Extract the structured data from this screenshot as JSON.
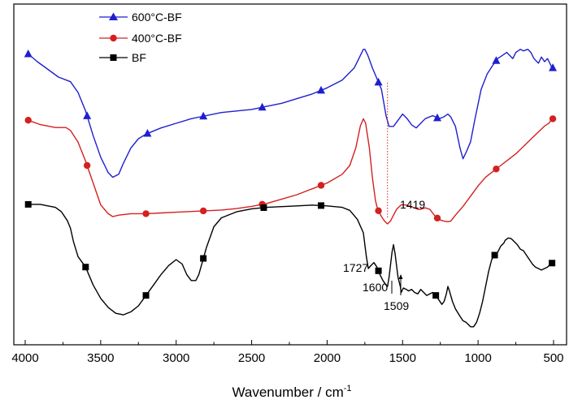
{
  "chart_data": {
    "type": "line",
    "xlabel": "Wavenumber / cm",
    "xlabel_superscript": "-1",
    "ylabel": "",
    "xlim": [
      4000,
      500
    ],
    "x_reversed": true,
    "x_ticks": [
      4000,
      3500,
      3000,
      2500,
      2000,
      1500,
      1000,
      500
    ],
    "y_ticks_labeled": false,
    "grid": false,
    "legend_position": "top-left",
    "series": [
      {
        "name": "600°C-BF",
        "color": "#1f1fd0",
        "marker": "triangle",
        "points": [
          [
            3980,
            85
          ],
          [
            3920,
            80
          ],
          [
            3850,
            75
          ],
          [
            3780,
            70
          ],
          [
            3700,
            67
          ],
          [
            3650,
            60
          ],
          [
            3600,
            48
          ],
          [
            3550,
            32
          ],
          [
            3500,
            18
          ],
          [
            3450,
            8
          ],
          [
            3420,
            5
          ],
          [
            3380,
            7
          ],
          [
            3350,
            14
          ],
          [
            3300,
            24
          ],
          [
            3250,
            30
          ],
          [
            3200,
            33
          ],
          [
            3100,
            37
          ],
          [
            3000,
            40
          ],
          [
            2900,
            43
          ],
          [
            2800,
            45
          ],
          [
            2700,
            47
          ],
          [
            2600,
            48
          ],
          [
            2500,
            49
          ],
          [
            2400,
            51
          ],
          [
            2300,
            53
          ],
          [
            2200,
            56
          ],
          [
            2100,
            59
          ],
          [
            2000,
            63
          ],
          [
            1900,
            68
          ],
          [
            1820,
            76
          ],
          [
            1780,
            84
          ],
          [
            1760,
            88
          ],
          [
            1750,
            88
          ],
          [
            1730,
            84
          ],
          [
            1700,
            76
          ],
          [
            1670,
            69
          ],
          [
            1640,
            62
          ],
          [
            1610,
            45
          ],
          [
            1590,
            38
          ],
          [
            1560,
            38
          ],
          [
            1530,
            42
          ],
          [
            1500,
            46
          ],
          [
            1470,
            43
          ],
          [
            1440,
            39
          ],
          [
            1410,
            37
          ],
          [
            1380,
            40
          ],
          [
            1350,
            43
          ],
          [
            1300,
            45
          ],
          [
            1260,
            43
          ],
          [
            1230,
            44
          ],
          [
            1200,
            46
          ],
          [
            1180,
            44
          ],
          [
            1150,
            38
          ],
          [
            1120,
            24
          ],
          [
            1100,
            17
          ],
          [
            1080,
            21
          ],
          [
            1050,
            28
          ],
          [
            1020,
            43
          ],
          [
            980,
            62
          ],
          [
            940,
            72
          ],
          [
            900,
            78
          ],
          [
            870,
            82
          ],
          [
            840,
            84
          ],
          [
            810,
            86
          ],
          [
            790,
            84
          ],
          [
            770,
            82
          ],
          [
            750,
            86
          ],
          [
            720,
            88
          ],
          [
            700,
            87
          ],
          [
            670,
            88
          ],
          [
            650,
            86
          ],
          [
            630,
            82
          ],
          [
            600,
            79
          ],
          [
            580,
            83
          ],
          [
            560,
            80
          ],
          [
            540,
            82
          ],
          [
            510,
            76
          ]
        ]
      },
      {
        "name": "400°C-BF",
        "color": "#d42020",
        "marker": "circle",
        "points": [
          [
            3980,
            71
          ],
          [
            3900,
            68
          ],
          [
            3800,
            66
          ],
          [
            3730,
            66
          ],
          [
            3700,
            64
          ],
          [
            3650,
            56
          ],
          [
            3600,
            43
          ],
          [
            3550,
            28
          ],
          [
            3500,
            13
          ],
          [
            3450,
            7
          ],
          [
            3420,
            5
          ],
          [
            3380,
            6
          ],
          [
            3300,
            7
          ],
          [
            3200,
            7
          ],
          [
            3100,
            7.5
          ],
          [
            3000,
            8
          ],
          [
            2900,
            8.5
          ],
          [
            2800,
            9
          ],
          [
            2700,
            9.5
          ],
          [
            2600,
            10.5
          ],
          [
            2500,
            12
          ],
          [
            2400,
            14
          ],
          [
            2300,
            17
          ],
          [
            2200,
            20
          ],
          [
            2100,
            24
          ],
          [
            2000,
            28
          ],
          [
            1900,
            34
          ],
          [
            1850,
            40
          ],
          [
            1810,
            52
          ],
          [
            1780,
            67
          ],
          [
            1760,
            72
          ],
          [
            1745,
            69
          ],
          [
            1720,
            52
          ],
          [
            1700,
            32
          ],
          [
            1680,
            16
          ],
          [
            1665,
            10
          ],
          [
            1640,
            5
          ],
          [
            1620,
            2
          ],
          [
            1600,
            0
          ],
          [
            1580,
            2
          ],
          [
            1560,
            6
          ],
          [
            1540,
            10
          ],
          [
            1510,
            13
          ],
          [
            1480,
            13
          ],
          [
            1450,
            12
          ],
          [
            1420,
            11
          ],
          [
            1400,
            10
          ],
          [
            1380,
            10
          ],
          [
            1350,
            11
          ],
          [
            1320,
            10
          ],
          [
            1290,
            6
          ],
          [
            1260,
            3
          ],
          [
            1230,
            2
          ],
          [
            1200,
            1.5
          ],
          [
            1180,
            2
          ],
          [
            1150,
            6
          ],
          [
            1100,
            12
          ],
          [
            1050,
            19
          ],
          [
            1000,
            26
          ],
          [
            950,
            32
          ],
          [
            900,
            36
          ],
          [
            850,
            40
          ],
          [
            800,
            44
          ],
          [
            750,
            48
          ],
          [
            700,
            53
          ],
          [
            650,
            58
          ],
          [
            600,
            63
          ],
          [
            560,
            67
          ],
          [
            530,
            69
          ],
          [
            510,
            72
          ]
        ]
      },
      {
        "name": "BF",
        "color": "#000000",
        "marker": "square",
        "points": [
          [
            3980,
            87
          ],
          [
            3900,
            87
          ],
          [
            3850,
            86
          ],
          [
            3800,
            85
          ],
          [
            3760,
            82
          ],
          [
            3720,
            76
          ],
          [
            3700,
            71
          ],
          [
            3680,
            62
          ],
          [
            3650,
            52
          ],
          [
            3600,
            45
          ],
          [
            3550,
            33
          ],
          [
            3500,
            24
          ],
          [
            3450,
            18
          ],
          [
            3400,
            14
          ],
          [
            3350,
            13
          ],
          [
            3300,
            15
          ],
          [
            3250,
            19
          ],
          [
            3200,
            26
          ],
          [
            3150,
            33
          ],
          [
            3100,
            40
          ],
          [
            3050,
            46
          ],
          [
            3000,
            50
          ],
          [
            2960,
            47
          ],
          [
            2930,
            40
          ],
          [
            2900,
            36
          ],
          [
            2870,
            36
          ],
          [
            2850,
            40
          ],
          [
            2800,
            58
          ],
          [
            2750,
            72
          ],
          [
            2700,
            78
          ],
          [
            2600,
            82
          ],
          [
            2500,
            84
          ],
          [
            2400,
            85
          ],
          [
            2300,
            85.5
          ],
          [
            2200,
            86
          ],
          [
            2100,
            86.5
          ],
          [
            2000,
            86
          ],
          [
            1900,
            85
          ],
          [
            1850,
            83
          ],
          [
            1800,
            77
          ],
          [
            1760,
            68
          ],
          [
            1740,
            52
          ],
          [
            1727,
            44
          ],
          [
            1710,
            46
          ],
          [
            1690,
            48
          ],
          [
            1670,
            45
          ],
          [
            1650,
            40
          ],
          [
            1630,
            36
          ],
          [
            1610,
            33
          ],
          [
            1600,
            32
          ],
          [
            1590,
            38
          ],
          [
            1570,
            55
          ],
          [
            1560,
            60
          ],
          [
            1550,
            54
          ],
          [
            1530,
            38
          ],
          [
            1515,
            32
          ],
          [
            1509,
            28
          ],
          [
            1495,
            31
          ],
          [
            1475,
            30
          ],
          [
            1460,
            29
          ],
          [
            1440,
            30
          ],
          [
            1420,
            28
          ],
          [
            1400,
            27
          ],
          [
            1380,
            30
          ],
          [
            1360,
            28
          ],
          [
            1340,
            26
          ],
          [
            1320,
            27
          ],
          [
            1300,
            28
          ],
          [
            1280,
            26
          ],
          [
            1260,
            23
          ],
          [
            1240,
            20
          ],
          [
            1225,
            22
          ],
          [
            1210,
            27
          ],
          [
            1200,
            32
          ],
          [
            1190,
            29
          ],
          [
            1170,
            22
          ],
          [
            1150,
            17
          ],
          [
            1120,
            12
          ],
          [
            1100,
            9
          ],
          [
            1080,
            8
          ],
          [
            1050,
            5
          ],
          [
            1030,
            5
          ],
          [
            1010,
            8
          ],
          [
            990,
            14
          ],
          [
            970,
            22
          ],
          [
            950,
            32
          ],
          [
            930,
            42
          ],
          [
            910,
            50
          ],
          [
            890,
            53
          ],
          [
            870,
            55
          ],
          [
            850,
            59
          ],
          [
            830,
            61
          ],
          [
            820,
            63
          ],
          [
            800,
            64.5
          ],
          [
            780,
            64
          ],
          [
            760,
            62
          ],
          [
            740,
            60
          ],
          [
            720,
            57
          ],
          [
            700,
            56
          ],
          [
            680,
            53
          ],
          [
            660,
            50
          ],
          [
            640,
            47
          ],
          [
            620,
            45
          ],
          [
            600,
            44
          ],
          [
            580,
            43
          ],
          [
            560,
            44
          ],
          [
            540,
            45
          ],
          [
            520,
            47
          ],
          [
            505,
            48
          ]
        ],
        "marker_x": [
          3980,
          3600,
          3200,
          2820,
          2420,
          2040,
          1660,
          1280,
          890,
          510
        ]
      }
    ],
    "blue_marker_x": [
      3980,
      3590,
      3190,
      2820,
      2430,
      2040,
      1660,
      1270,
      880,
      505
    ],
    "red_marker_x": [
      3980,
      3590,
      3200,
      2820,
      2430,
      2040,
      1660,
      1270,
      880,
      505
    ],
    "reference_line": {
      "x": 1600,
      "color": "#d42020",
      "style": "dotted"
    },
    "annotations": [
      {
        "text": "1727",
        "x": 1727
      },
      {
        "text": "1600",
        "x": 1600
      },
      {
        "text": "1509",
        "x": 1509
      },
      {
        "text": "1419",
        "x": 1419
      }
    ]
  }
}
